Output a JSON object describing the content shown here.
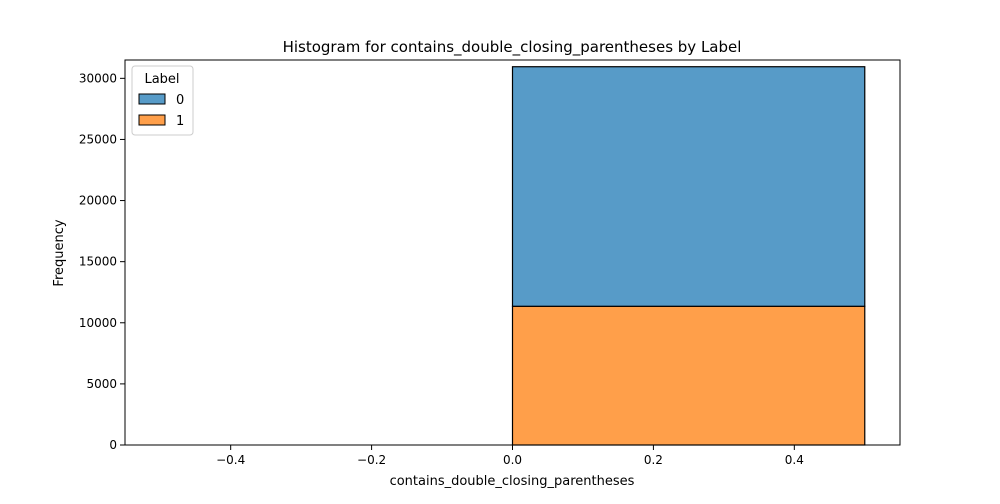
{
  "chart_data": {
    "type": "bar",
    "stacked": true,
    "title": "Histogram for contains_double_closing_parentheses by Label",
    "xlabel": "contains_double_closing_parentheses",
    "ylabel": "Frequency",
    "xlim": [
      -0.55,
      0.55
    ],
    "ylim": [
      0,
      31500
    ],
    "x_ticks": [
      -0.4,
      -0.2,
      0.0,
      0.2,
      0.4
    ],
    "x_tick_labels": [
      "−0.4",
      "−0.2",
      "0.0",
      "0.2",
      "0.4"
    ],
    "y_ticks": [
      0,
      5000,
      10000,
      15000,
      20000,
      25000,
      30000
    ],
    "y_tick_labels": [
      "0",
      "5000",
      "10000",
      "15000",
      "20000",
      "25000",
      "30000"
    ],
    "bins": [
      [
        -0.5,
        0.0
      ],
      [
        0.0,
        0.5
      ]
    ],
    "series": [
      {
        "name": "1",
        "color": "#ff9f4a",
        "values": [
          0,
          11350
        ]
      },
      {
        "name": "0",
        "color": "#579bc8",
        "values": [
          0,
          19600
        ]
      }
    ],
    "legend": {
      "title": "Label",
      "position": "top-left",
      "entries": [
        {
          "label": "0",
          "color": "#579bc8"
        },
        {
          "label": "1",
          "color": "#ff9f4a"
        }
      ]
    },
    "grid": false
  }
}
